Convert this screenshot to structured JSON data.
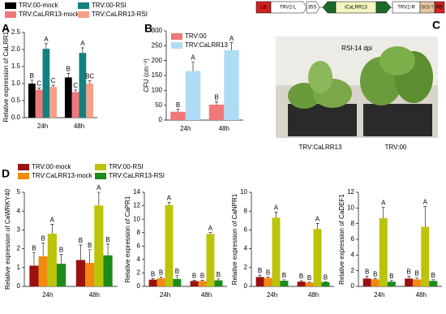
{
  "chart_data": [
    {
      "type": "bar",
      "panel": "A",
      "ylabel": "Relative expression of CaLRR13",
      "categories": [
        "24h",
        "48h"
      ],
      "ylim": [
        0,
        2.5
      ],
      "yticks": [
        {
          "value": 0,
          "label": "0.0"
        },
        0.5,
        {
          "value": 1,
          "label": "1.0"
        },
        1.5,
        {
          "value": 2,
          "label": "2.0"
        },
        2.5
      ],
      "legend": "top",
      "series": [
        {
          "name": "TRV:00-mock",
          "color": "#000000",
          "values": [
            1.0,
            1.18
          ],
          "errors": [
            0.1,
            0.12
          ],
          "letters": [
            "B",
            "B"
          ]
        },
        {
          "name": "TRV:CaLRR13-mock",
          "color": "#f07878",
          "values": [
            0.82,
            0.75
          ],
          "errors": [
            0.05,
            0.06
          ],
          "letters": [
            "C",
            "C"
          ]
        },
        {
          "name": "TRV:00-RSI",
          "color": "#138080",
          "values": [
            2.02,
            1.9
          ],
          "errors": [
            0.15,
            0.15
          ],
          "letters": [
            "A",
            "A"
          ]
        },
        {
          "name": "TRV:CaLRR13-RSI",
          "color": "#f5a088",
          "values": [
            0.9,
            1.0
          ],
          "errors": [
            0.05,
            0.08
          ],
          "letters": [
            "C",
            "BC"
          ]
        }
      ]
    },
    {
      "type": "bar",
      "panel": "B",
      "ylabel": "CFU (cm⁻²)",
      "categories": [
        "24h",
        "48h"
      ],
      "ylim": [
        0,
        300
      ],
      "yticks": [
        0,
        50,
        100,
        150,
        200,
        250,
        300
      ],
      "legend": "upper left",
      "series": [
        {
          "name": "TRV:00",
          "color": "#f07878",
          "values": [
            28,
            52
          ],
          "errors": [
            8,
            10
          ],
          "letters": [
            "B",
            "B"
          ]
        },
        {
          "name": "TRV:CaLRR13",
          "color": "#aedcf5",
          "values": [
            165,
            235
          ],
          "errors": [
            30,
            25
          ],
          "letters": [
            "A",
            "A"
          ]
        }
      ]
    },
    {
      "type": "bar",
      "panel": "D",
      "categories": [
        "24h",
        "48h"
      ],
      "legend": "top",
      "series": [
        {
          "name": "TRV:00-mock",
          "color": "#9b1010"
        },
        {
          "name": "TRV:CaLRR13-mock",
          "color": "#f08a10"
        },
        {
          "name": "TRV:00-RSI",
          "color": "#bcc40a"
        },
        {
          "name": "TRV:CaLRR13-RSI",
          "color": "#1a8c1a"
        }
      ],
      "subplots": [
        {
          "ylabel": "Relative expression of CaWRKY40",
          "ylim": [
            0,
            5
          ],
          "yticks": [
            0,
            1,
            2,
            3,
            4,
            5
          ],
          "series": [
            {
              "values": [
                1.1,
                1.4
              ],
              "errors": [
                0.7,
                0.8
              ],
              "letters": [
                "B",
                "B"
              ]
            },
            {
              "values": [
                1.6,
                1.25
              ],
              "errors": [
                0.7,
                0.7
              ],
              "letters": [
                "B",
                "B"
              ]
            },
            {
              "values": [
                2.8,
                4.3
              ],
              "errors": [
                0.5,
                0.7
              ],
              "letters": [
                "A",
                "A"
              ]
            },
            {
              "values": [
                1.2,
                1.65
              ],
              "errors": [
                0.5,
                0.6
              ],
              "letters": [
                "B",
                "B"
              ]
            }
          ]
        },
        {
          "ylabel": "Relative expression of CaPR1",
          "ylim": [
            0,
            14
          ],
          "yticks": [
            0,
            2,
            4,
            6,
            8,
            10,
            12,
            14
          ],
          "series": [
            {
              "values": [
                1.0,
                0.8
              ],
              "errors": [
                0.15,
                0.1
              ],
              "letters": [
                "B",
                "B"
              ]
            },
            {
              "values": [
                1.2,
                0.8
              ],
              "errors": [
                0.2,
                0.1
              ],
              "letters": [
                "B",
                "B"
              ]
            },
            {
              "values": [
                12.1,
                7.8
              ],
              "errors": [
                0.4,
                0.2
              ],
              "letters": [
                "A",
                "A"
              ]
            },
            {
              "values": [
                1.1,
                0.9
              ],
              "errors": [
                0.5,
                0.2
              ],
              "letters": [
                "B",
                "B"
              ]
            }
          ]
        },
        {
          "ylabel": "Relative expression of CaNPR1",
          "ylim": [
            0,
            10
          ],
          "yticks": [
            0,
            2,
            4,
            6,
            8,
            10
          ],
          "series": [
            {
              "values": [
                1.0,
                0.5
              ],
              "errors": [
                0.2,
                0.1
              ],
              "letters": [
                "B",
                "B"
              ]
            },
            {
              "values": [
                0.9,
                0.4
              ],
              "errors": [
                0.1,
                0.05
              ],
              "letters": [
                "B",
                "B"
              ]
            },
            {
              "values": [
                7.3,
                6.1
              ],
              "errors": [
                0.6,
                0.6
              ],
              "letters": [
                "A",
                "A"
              ]
            },
            {
              "values": [
                0.6,
                0.45
              ],
              "errors": [
                0.1,
                0.05
              ],
              "letters": [
                "B",
                "B"
              ]
            }
          ]
        },
        {
          "ylabel": "Relative expression of CaDEF1",
          "ylim": [
            0,
            12
          ],
          "yticks": [
            0,
            2,
            4,
            6,
            8,
            10,
            12
          ],
          "series": [
            {
              "values": [
                1.0,
                1.0
              ],
              "errors": [
                0.3,
                0.3
              ],
              "letters": [
                "B",
                "B"
              ]
            },
            {
              "values": [
                0.9,
                0.9
              ],
              "errors": [
                0.1,
                0.2
              ],
              "letters": [
                "B",
                "B"
              ]
            },
            {
              "values": [
                8.7,
                7.6
              ],
              "errors": [
                1.4,
                2.6
              ],
              "letters": [
                "A",
                "A"
              ]
            },
            {
              "values": [
                0.6,
                0.7
              ],
              "errors": [
                0.15,
                0.15
              ],
              "letters": [
                "B",
                "B"
              ]
            }
          ]
        }
      ]
    }
  ],
  "panel_c": {
    "label": "C",
    "construct": [
      "LB",
      "TRV2-L",
      "35S",
      "iCaLRR13",
      "TRV2-R",
      "OCS T",
      "RB"
    ],
    "photo_title": "RSI-14 dpi",
    "photo_labels": [
      "TRV:CaLRR13",
      "TRV:00"
    ]
  }
}
